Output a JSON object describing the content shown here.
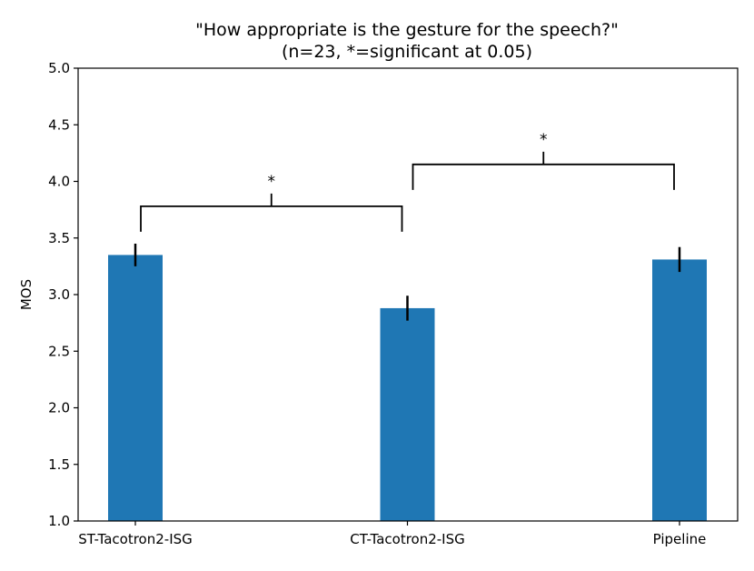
{
  "chart_data": {
    "type": "bar",
    "title": "\"How appropriate is the gesture for the speech?\"",
    "subtitle": "(n=23, *=significant at 0.05)",
    "xlabel": "",
    "ylabel": "MOS",
    "ylim": [
      1.0,
      5.0
    ],
    "yticks": [
      "1.0",
      "1.5",
      "2.0",
      "2.5",
      "3.0",
      "3.5",
      "4.0",
      "4.5",
      "5.0"
    ],
    "categories": [
      "ST-Tacotron2-ISG",
      "CT-Tacotron2-ISG",
      "Pipeline"
    ],
    "values": [
      3.35,
      2.88,
      3.31
    ],
    "error": [
      0.1,
      0.11,
      0.11
    ],
    "bar_color": "#1f77b4",
    "significance": [
      {
        "from": 0,
        "to": 1,
        "label": "*",
        "y": 3.78
      },
      {
        "from": 1,
        "to": 2,
        "label": "*",
        "y": 4.15
      }
    ],
    "grid": false
  }
}
